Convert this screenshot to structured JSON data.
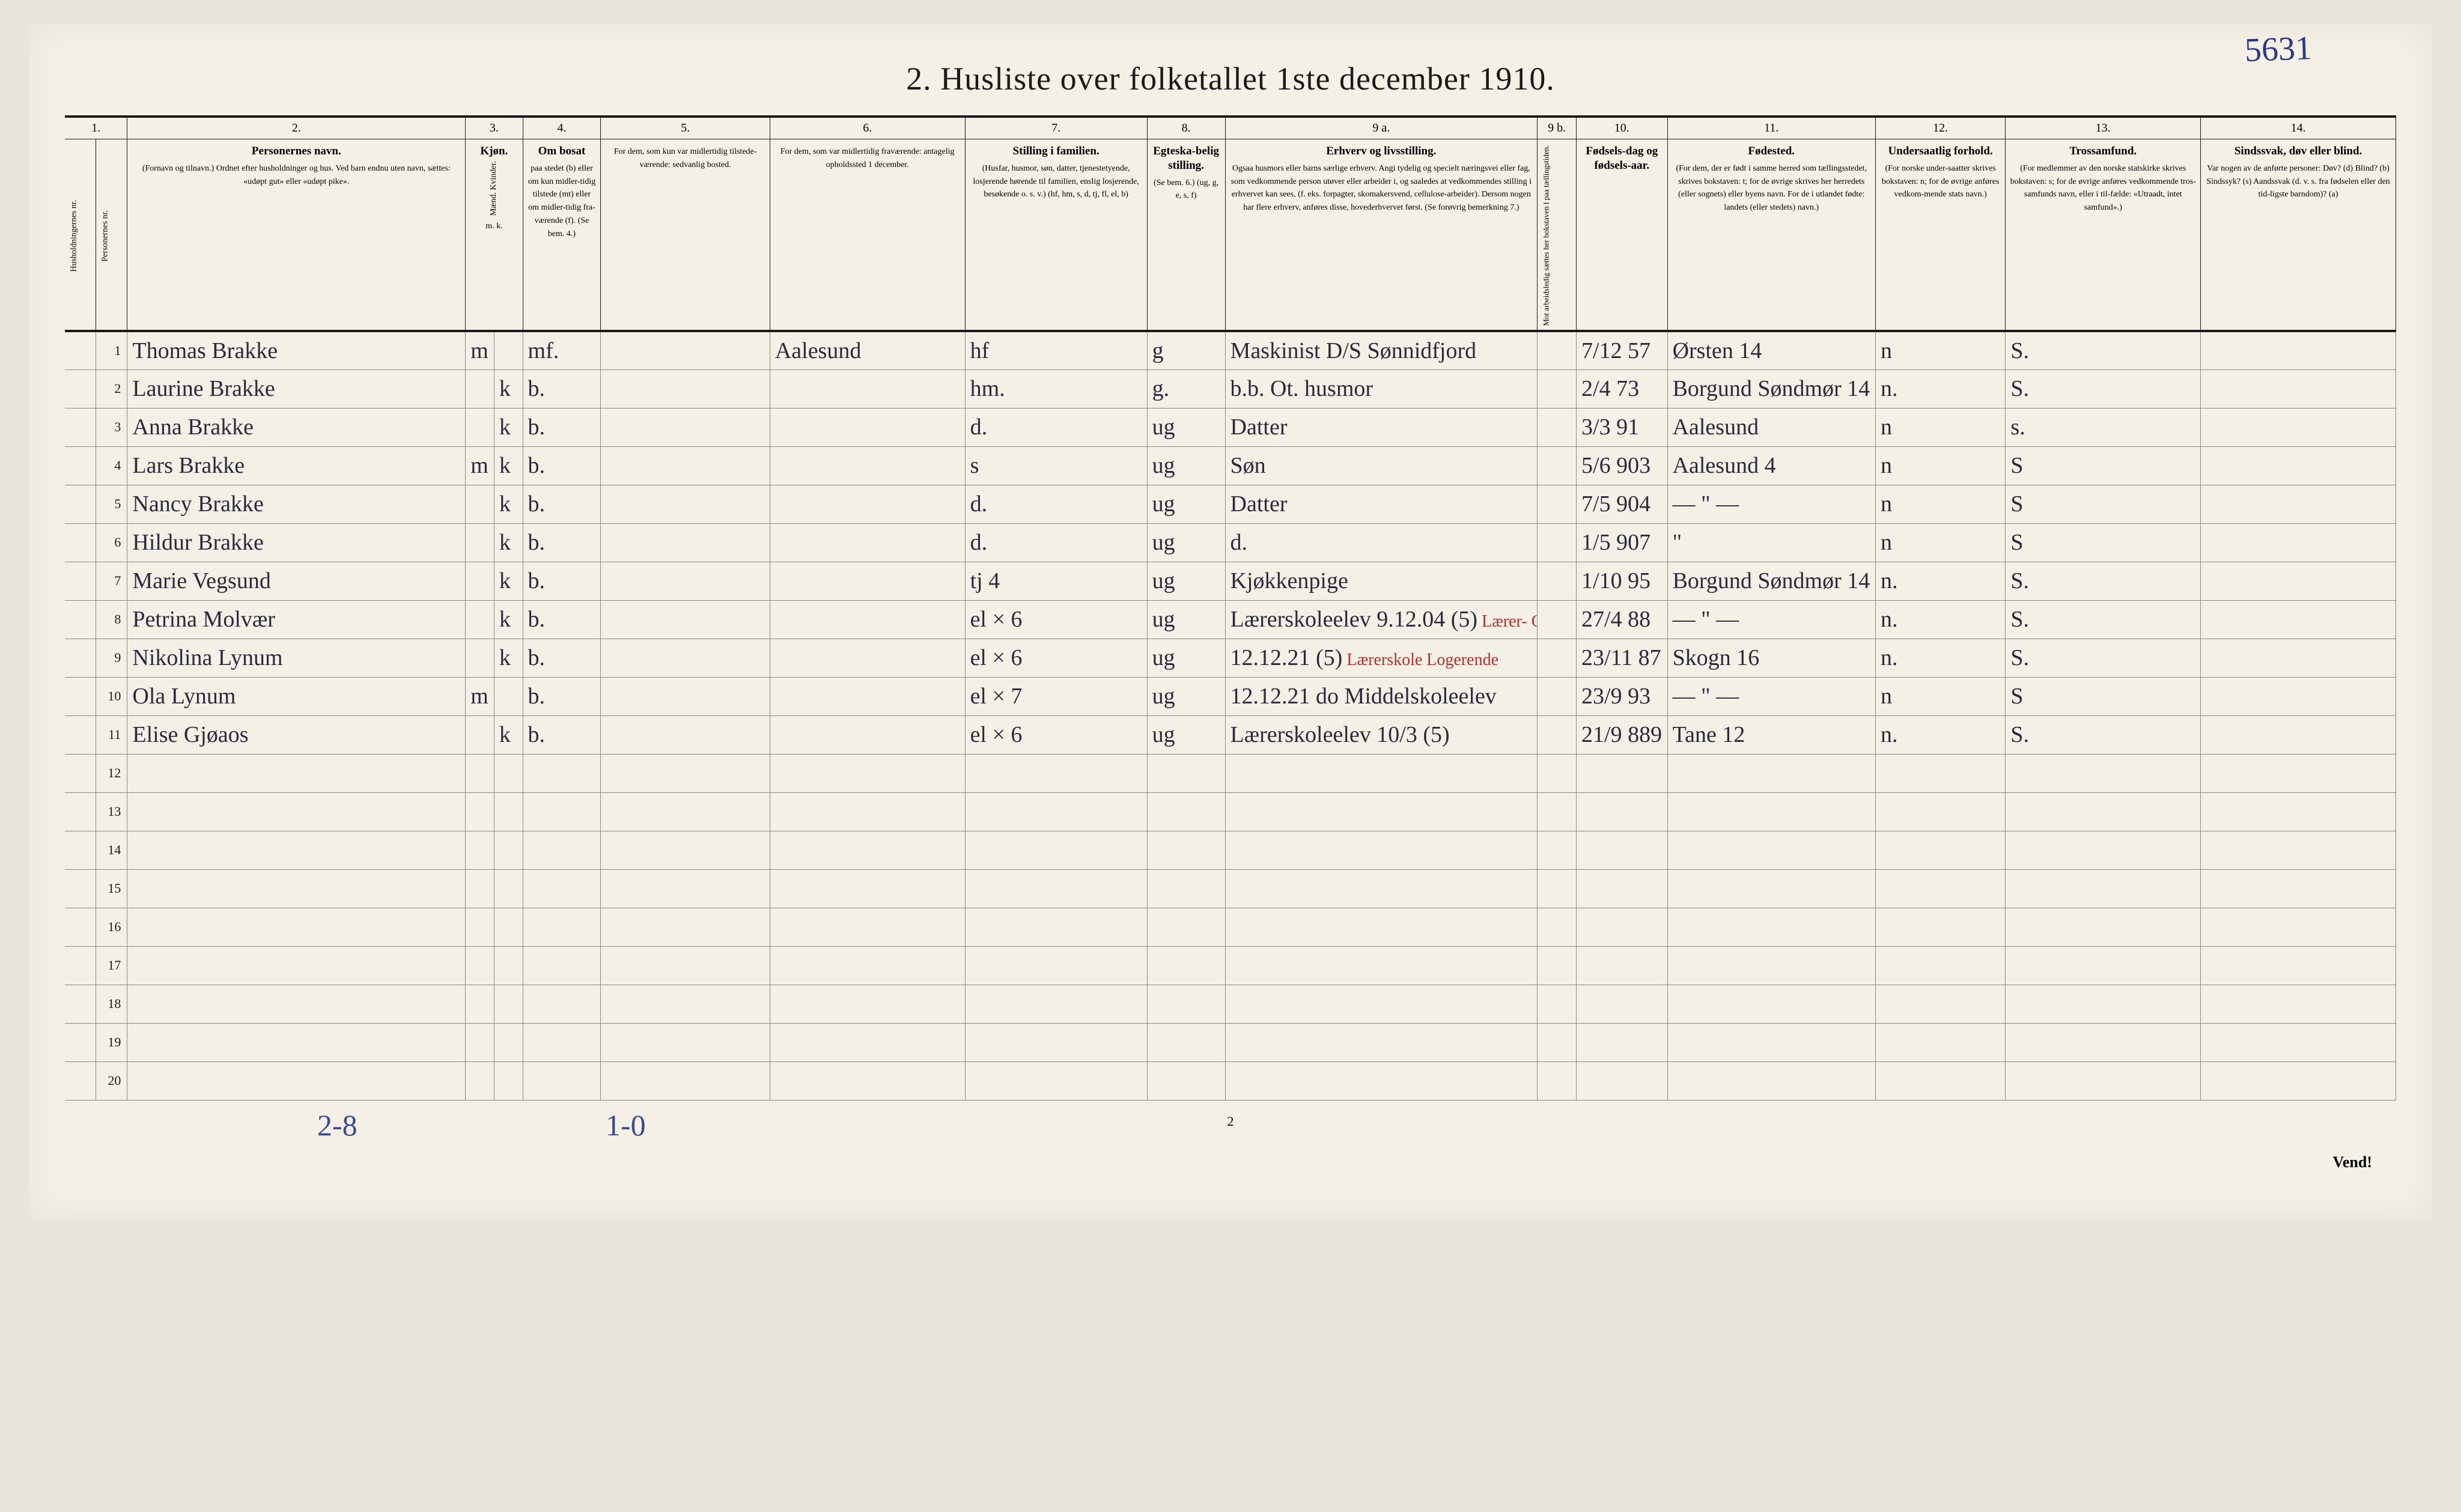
{
  "handwritten_top_right": "5631",
  "title": "2.  Husliste over folketallet 1ste december 1910.",
  "column_numbers": [
    "1.",
    "2.",
    "3.",
    "4.",
    "5.",
    "6.",
    "7.",
    "8.",
    "9 a.",
    "9 b.",
    "10.",
    "11.",
    "12.",
    "13.",
    "14."
  ],
  "headers": {
    "c1a": "Husholdningernes nr.",
    "c1b": "Personernes nr.",
    "c2_bold": "Personernes navn.",
    "c2_lines": "(Fornavn og tilnavn.)\nOrdnet efter husholdninger og hus.\nVed barn endnu uten navn, sættes: «udøpt gut» eller «udøpt pike».",
    "c3_bold": "Kjøn.",
    "c3_sub": "Mænd.  Kvinder.",
    "c3_mk": "m.   k.",
    "c4_bold": "Om bosat",
    "c4_lines": "paa stedet (b) eller om kun midler-tidig tilstede (mt) eller om midler-tidig fra-værende (f). (Se bem. 4.)",
    "c5_lines": "For dem, som kun var midlertidig tilstede-værende:\nsedvanlig bosted.",
    "c6_lines": "For dem, som var midlertidig fraværende:\nantagelig opholdssted 1 december.",
    "c7_bold": "Stilling i familien.",
    "c7_lines": "(Husfar, husmor, søn, datter, tjenestetyende, losjerende hørende til familien, enslig losjerende, besøkende o. s. v.)\n(hf, hm, s, d, tj, fl, el, b)",
    "c8_bold": "Egteska-belig stilling.",
    "c8_lines": "(Se bem. 6.)\n(ug, g, e, s, f)",
    "c9a_bold": "Erhverv og livsstilling.",
    "c9a_lines": "Ogsaa husmors eller barns særlige erhverv. Angi tydelig og specielt næringsvei eller fag, som vedkommende person utøver eller arbeider i, og saaledes at vedkommendes stilling i erhvervet kan sees, (f. eks. forpagter, skomakersvend, cellulose-arbeider). Dersom nogen har flere erhverv, anføres disse, hovederhvervet først.\n(Se forøvrig bemerkning 7.)",
    "c9b_lines": "Mot arbeidsledig sættes her bokstaven l paa tællingstiden.",
    "c10_bold": "Fødsels-dag og fødsels-aar.",
    "c11_bold": "Fødested.",
    "c11_lines": "(For dem, der er født i samme herred som tællingsstedet, skrives bokstaven: t; for de øvrige skrives her herredets (eller sognets) eller byens navn. For de i utlandet fødte: landets (eller stedets) navn.)",
    "c12_bold": "Undersaatlig forhold.",
    "c12_lines": "(For norske under-saatter skrives bokstaven: n; for de øvrige anføres vedkom-mende stats navn.)",
    "c13_bold": "Trossamfund.",
    "c13_lines": "(For medlemmer av den norske statskirke skrives bokstaven: s; for de øvrige anføres vedkommende tros-samfunds navn, eller i til-fælde: «Utraadt, intet samfund».)",
    "c14_bold": "Sindssvak, døv eller blind.",
    "c14_lines": "Var nogen av de anførte personer:\nDøv?   (d)\nBlind?  (b)\nSindssyk? (s)\nAandssvak (d. v. s. fra fødselen eller den tid-ligste barndom)?  (a)"
  },
  "rows": [
    {
      "n": "1",
      "name": "Thomas Brakke",
      "m": "m",
      "k": "",
      "bosat": "mf.",
      "c5": "",
      "c6": "Aalesund",
      "fam": "hf",
      "egte": "g",
      "erhverv": "Maskinist D/S Sønnidfjord",
      "dob": "7/12 57",
      "fsted": "Ørsten 14",
      "under": "n",
      "tros": "S.",
      "c14": ""
    },
    {
      "n": "2",
      "name": "Laurine Brakke",
      "m": "",
      "k": "k",
      "bosat": "b.",
      "c5": "",
      "c6": "",
      "fam": "hm.",
      "egte": "g.",
      "erhverv": "b.b. Ot. husmor",
      "dob": "2/4 73",
      "fsted": "Borgund Søndmør 14",
      "under": "n.",
      "tros": "S.",
      "c14": ""
    },
    {
      "n": "3",
      "name": "Anna Brakke",
      "m": "",
      "k": "k",
      "bosat": "b.",
      "c5": "",
      "c6": "",
      "fam": "d.",
      "egte": "ug",
      "erhverv": "Datter",
      "dob": "3/3 91",
      "fsted": "Aalesund",
      "under": "n",
      "tros": "s.",
      "c14": ""
    },
    {
      "n": "4",
      "name": "Lars Brakke",
      "m": "m",
      "k": "k",
      "bosat": "b.",
      "c5": "",
      "c6": "",
      "fam": "s",
      "egte": "ug",
      "erhverv": "Søn",
      "dob": "5/6 903",
      "fsted": "Aalesund 4",
      "under": "n",
      "tros": "S",
      "c14": ""
    },
    {
      "n": "5",
      "name": "Nancy Brakke",
      "m": "",
      "k": "k",
      "bosat": "b.",
      "c5": "",
      "c6": "",
      "fam": "d.",
      "egte": "ug",
      "erhverv": "Datter",
      "dob": "7/5 904",
      "fsted": "— \" —",
      "under": "n",
      "tros": "S",
      "c14": ""
    },
    {
      "n": "6",
      "name": "Hildur Brakke",
      "m": "",
      "k": "k",
      "bosat": "b.",
      "c5": "",
      "c6": "",
      "fam": "d.",
      "egte": "ug",
      "erhverv": "d.",
      "dob": "1/5 907",
      "fsted": "\"",
      "under": "n",
      "tros": "S",
      "c14": ""
    },
    {
      "n": "7",
      "name": "Marie Vegsund",
      "m": "",
      "k": "k",
      "bosat": "b.",
      "c5": "",
      "c6": "",
      "fam": "tj 4",
      "egte": "ug",
      "erhverv": "Kjøkkenpige",
      "dob": "1/10 95",
      "fsted": "Borgund Søndmør 14",
      "under": "n.",
      "tros": "S.",
      "c14": ""
    },
    {
      "n": "8",
      "name": "Petrina Molvær",
      "m": "",
      "k": "k",
      "bosat": "b.",
      "c5": "",
      "c6": "",
      "fam": "el × 6",
      "egte": "ug",
      "erhverv": "Lærerskoleelev 9.12.04 (5)",
      "erhverv_red": "Lærer- Com",
      "dob": "27/4 88",
      "fsted": "— \" —",
      "under": "n.",
      "tros": "S.",
      "c14": ""
    },
    {
      "n": "9",
      "name": "Nikolina Lynum",
      "m": "",
      "k": "k",
      "bosat": "b.",
      "c5": "",
      "c6": "",
      "fam": "el × 6",
      "egte": "ug",
      "erhverv": "12.12.21 (5)",
      "erhverv_red": "Lærerskole Logerende",
      "dob": "23/11 87",
      "fsted": "Skogn 16",
      "under": "n.",
      "tros": "S.",
      "c14": ""
    },
    {
      "n": "10",
      "name": "Ola Lynum",
      "m": "m",
      "k": "",
      "bosat": "b.",
      "c5": "",
      "c6": "",
      "fam": "el × 7",
      "egte": "ug",
      "erhverv": "12.12.21 do  Middelskoleelev",
      "dob": "23/9 93",
      "fsted": "— \" —",
      "under": "n",
      "tros": "S",
      "c14": ""
    },
    {
      "n": "11",
      "name": "Elise Gjøaos",
      "m": "",
      "k": "k",
      "bosat": "b.",
      "c5": "",
      "c6": "",
      "fam": "el × 6",
      "egte": "ug",
      "erhverv": "Lærerskoleelev 10/3 (5)",
      "erhverv_red": "",
      "dob": "21/9 889",
      "fsted": "Tane 12",
      "under": "n.",
      "tros": "S.",
      "c14": ""
    }
  ],
  "x_rows": [
    8,
    9,
    10,
    11
  ],
  "empty_row_numbers": [
    "12",
    "13",
    "14",
    "15",
    "16",
    "17",
    "18",
    "19",
    "20"
  ],
  "footer": {
    "note1": "2-8",
    "note2": "1-0",
    "pagenum": "2",
    "vend": "Vend!"
  },
  "colors": {
    "paper": "#f5f0e6",
    "ink": "#1a1a1a",
    "pen_blue": "#3a4a9a",
    "pen_dark": "#2a2a3a",
    "red_ink": "#b03030",
    "faint_rule": "#888"
  }
}
